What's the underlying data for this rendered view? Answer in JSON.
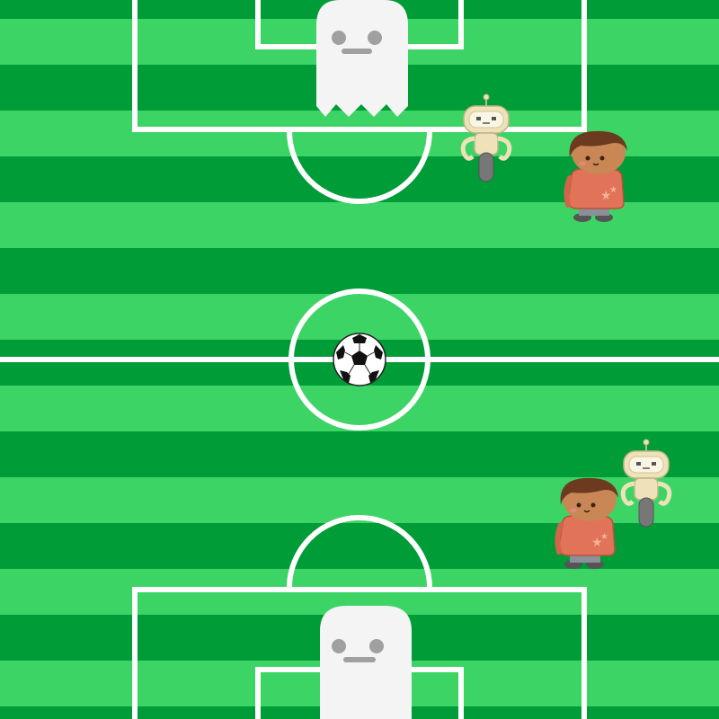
{
  "game": {
    "type": "soccer-field",
    "colors": {
      "stripe_light": "#3dd466",
      "stripe_dark": "#009c37",
      "line": "#ffffff",
      "ghost": "#f4f4f4",
      "robot": "#efe2b8",
      "kid_shirt": "#e07358",
      "kid_hair": "#6b3a1f",
      "ball": "#ffffff"
    },
    "sprites": {
      "ghost_goalkeepers": 2,
      "robot_players": 2,
      "kid_players": 2,
      "ball": "soccer-ball"
    }
  }
}
